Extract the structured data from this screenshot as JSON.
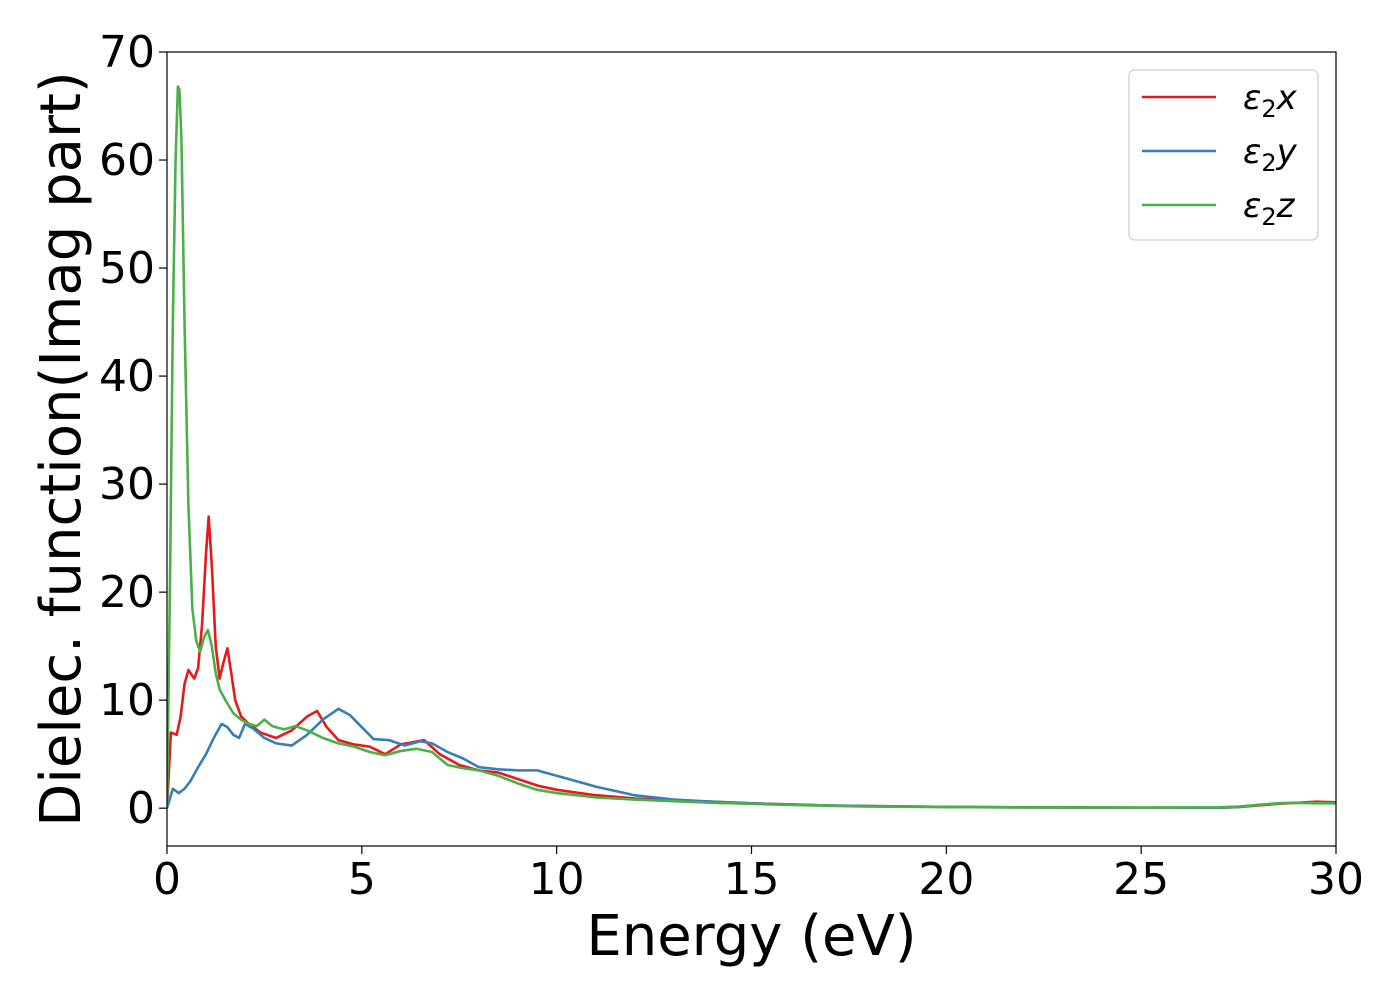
{
  "chart_data": {
    "type": "line",
    "title": "",
    "xlabel": "Energy (eV)",
    "ylabel": "Dielec. function(Imag part)",
    "xlim": [
      0,
      30
    ],
    "ylim": [
      -3.5,
      70
    ],
    "xticks": [
      0,
      5,
      10,
      15,
      20,
      25,
      30
    ],
    "yticks": [
      0,
      10,
      20,
      30,
      40,
      50,
      60,
      70
    ],
    "grid": false,
    "legend_position": "top-right",
    "series": [
      {
        "name": "ε₂x",
        "legend_base": "ε",
        "legend_sub": "2",
        "legend_var": "x",
        "color": "#e41a1c",
        "x": [
          0,
          0.1,
          0.25,
          0.35,
          0.45,
          0.55,
          0.7,
          0.8,
          0.9,
          1.0,
          1.07,
          1.15,
          1.25,
          1.35,
          1.45,
          1.55,
          1.65,
          1.75,
          1.9,
          2.1,
          2.4,
          2.8,
          3.2,
          3.6,
          3.85,
          4.1,
          4.4,
          4.8,
          5.2,
          5.6,
          6.0,
          6.6,
          7.0,
          7.5,
          8.0,
          8.5,
          9.0,
          9.5,
          10,
          11,
          12,
          13,
          14,
          15,
          16,
          17,
          18,
          20,
          22,
          25,
          27,
          27.5,
          28,
          28.5,
          29,
          29.5,
          30
        ],
        "y": [
          0,
          7.0,
          6.8,
          8.5,
          11.5,
          12.8,
          12.0,
          13.0,
          17.0,
          23.5,
          27.0,
          22.5,
          15.0,
          12.0,
          13.5,
          14.8,
          12.5,
          10.0,
          8.5,
          7.8,
          7.0,
          6.5,
          7.2,
          8.5,
          9.0,
          7.5,
          6.3,
          5.9,
          5.7,
          5.0,
          5.9,
          6.3,
          5.0,
          4.0,
          3.5,
          3.3,
          2.7,
          2.1,
          1.7,
          1.2,
          0.9,
          0.7,
          0.6,
          0.45,
          0.35,
          0.25,
          0.2,
          0.12,
          0.08,
          0.05,
          0.05,
          0.1,
          0.25,
          0.4,
          0.5,
          0.6,
          0.55
        ]
      },
      {
        "name": "ε₂y",
        "legend_base": "ε",
        "legend_sub": "2",
        "legend_var": "y",
        "color": "#377eb8",
        "x": [
          0,
          0.15,
          0.3,
          0.45,
          0.6,
          0.8,
          1.0,
          1.2,
          1.4,
          1.55,
          1.7,
          1.85,
          2.0,
          2.2,
          2.5,
          2.8,
          3.2,
          3.6,
          4.0,
          4.4,
          4.7,
          5.0,
          5.3,
          5.7,
          6.1,
          6.5,
          6.8,
          7.2,
          7.6,
          8.0,
          8.5,
          9.0,
          9.5,
          10.0,
          10.5,
          11.0,
          12.0,
          13.0,
          14.0,
          15.0,
          16.0,
          17.0,
          18.0,
          20.0,
          22.0,
          25.0,
          27.0,
          27.5,
          28.0,
          28.5,
          29.0,
          29.5,
          30.0
        ],
        "y": [
          0,
          1.8,
          1.4,
          1.8,
          2.5,
          3.8,
          5.0,
          6.5,
          7.8,
          7.5,
          6.8,
          6.5,
          7.8,
          7.4,
          6.5,
          6.0,
          5.8,
          6.8,
          8.2,
          9.2,
          8.6,
          7.5,
          6.4,
          6.3,
          5.8,
          6.2,
          6.0,
          5.2,
          4.6,
          3.8,
          3.6,
          3.5,
          3.5,
          3.0,
          2.5,
          2.0,
          1.2,
          0.8,
          0.6,
          0.45,
          0.35,
          0.25,
          0.2,
          0.12,
          0.08,
          0.05,
          0.05,
          0.1,
          0.3,
          0.45,
          0.5,
          0.5,
          0.5
        ]
      },
      {
        "name": "ε₂z",
        "legend_base": "ε",
        "legend_sub": "2",
        "legend_var": "z",
        "color": "#4daf4a",
        "x": [
          0,
          0.08,
          0.15,
          0.22,
          0.28,
          0.32,
          0.37,
          0.45,
          0.55,
          0.65,
          0.75,
          0.85,
          0.95,
          1.05,
          1.15,
          1.25,
          1.35,
          1.5,
          1.7,
          1.9,
          2.1,
          2.3,
          2.5,
          2.7,
          3.0,
          3.3,
          3.6,
          4.0,
          4.4,
          4.8,
          5.2,
          5.6,
          6.0,
          6.4,
          6.8,
          7.2,
          7.6,
          8.0,
          8.5,
          9.0,
          9.5,
          10.0,
          11.0,
          12.0,
          13.0,
          14.0,
          15.0,
          16.0,
          17.0,
          18.0,
          20.0,
          22.0,
          25.0,
          27.0,
          27.5,
          28.0,
          28.5,
          29.0,
          29.5,
          30.0
        ],
        "y": [
          0,
          22.0,
          45.0,
          60.0,
          66.8,
          66.5,
          62.0,
          45.0,
          28.0,
          18.5,
          15.5,
          14.5,
          15.8,
          16.5,
          15.0,
          12.5,
          11.0,
          10.0,
          8.8,
          8.2,
          7.8,
          7.6,
          8.2,
          7.6,
          7.3,
          7.6,
          7.2,
          6.5,
          6.0,
          5.7,
          5.2,
          4.9,
          5.3,
          5.5,
          5.2,
          4.0,
          3.7,
          3.5,
          3.0,
          2.3,
          1.7,
          1.4,
          1.0,
          0.8,
          0.65,
          0.5,
          0.4,
          0.3,
          0.22,
          0.15,
          0.1,
          0.07,
          0.05,
          0.08,
          0.15,
          0.3,
          0.45,
          0.5,
          0.45,
          0.45
        ]
      }
    ]
  }
}
